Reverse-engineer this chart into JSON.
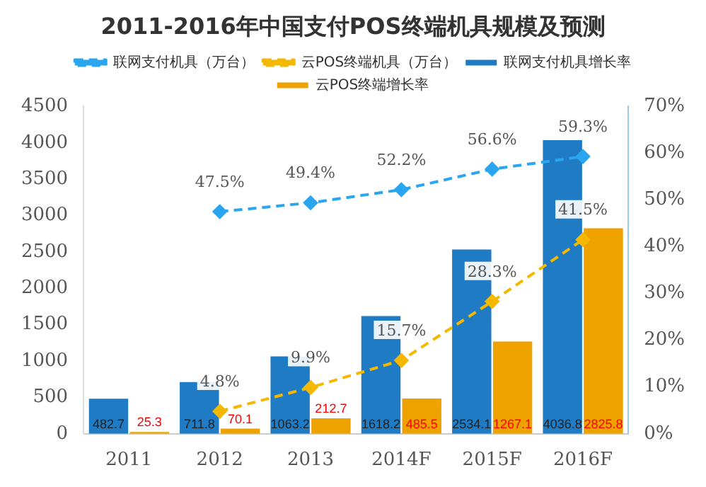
{
  "chart_data": {
    "type": "bar",
    "title": "2011-2016年中国支付POS终端机具规模及预测",
    "categories": [
      "2011",
      "2012",
      "2013",
      "2014F",
      "2015F",
      "2016F"
    ],
    "series": [
      {
        "name": "联网支付机具（万台）",
        "type": "line",
        "axis": "y2",
        "color": "#2aa5f0",
        "values": [
          null,
          47.5,
          49.4,
          52.2,
          56.6,
          59.3
        ],
        "value_labels": [
          null,
          "47.5%",
          "49.4%",
          "52.2%",
          "56.6%",
          "59.3%"
        ]
      },
      {
        "name": "云POS终端机具（万台）",
        "type": "line",
        "axis": "y2",
        "color": "#f5b800",
        "values": [
          null,
          4.8,
          9.9,
          15.7,
          28.3,
          41.5
        ],
        "value_labels": [
          null,
          "4.8%",
          "9.9%",
          "15.7%",
          "28.3%",
          "41.5%"
        ]
      },
      {
        "name": "联网支付机具增长率",
        "color": "#1f7bc4",
        "values": [
          482.7,
          711.8,
          1063.2,
          1618.2,
          2534.1,
          4036.8
        ],
        "value_labels": [
          "482.7",
          "711.8",
          "1063.2",
          "1618.2",
          "2534.1",
          "4036.8"
        ]
      },
      {
        "name": "云POS终端增长率",
        "color": "#eda200",
        "values": [
          25.3,
          70.1,
          212.7,
          485.5,
          1267.1,
          2825.8
        ],
        "value_labels": [
          "25.3",
          "70.1",
          "212.7",
          "485.5",
          "1267.1",
          "2825.8"
        ]
      }
    ],
    "ylim": [
      0,
      4500
    ],
    "yticks": [
      0,
      500,
      1000,
      1500,
      2000,
      2500,
      3000,
      3500,
      4000,
      4500
    ],
    "y2lim": [
      0,
      70
    ],
    "y2ticks": [
      {
        "value": 0,
        "label": "0%"
      },
      {
        "value": 10,
        "label": "10%"
      },
      {
        "value": 20,
        "label": "20%"
      },
      {
        "value": 30,
        "label": "30%"
      },
      {
        "value": 40,
        "label": "40%"
      },
      {
        "value": 50,
        "label": "50%"
      },
      {
        "value": 60,
        "label": "60%"
      },
      {
        "value": 70,
        "label": "70%"
      }
    ],
    "grid": false,
    "legend": "top",
    "marker": "diamond",
    "line_style": "dashed"
  }
}
